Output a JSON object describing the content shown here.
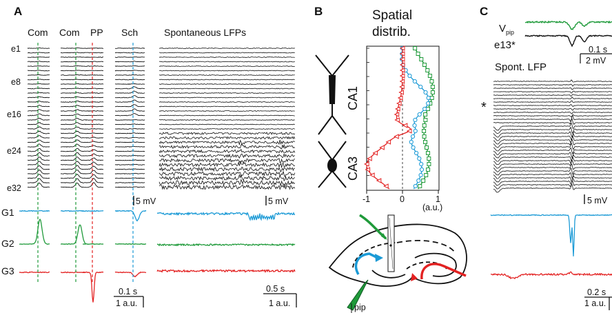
{
  "panels": {
    "a": {
      "label": "A",
      "col_headers": [
        "Com",
        "Com",
        "PP",
        "Sch"
      ],
      "spont_header": "Spontaneous LFPs",
      "electrodes": [
        "e1",
        "e8",
        "e16",
        "e24",
        "e32"
      ],
      "components": [
        "G1",
        "G2",
        "G3"
      ],
      "scale_mv_left": "5 mV",
      "scale_mv_right": "5 mV",
      "scale_time_left": "0.1 s",
      "scale_au_left": "1 a.u.",
      "scale_time_right": "0.5 s",
      "scale_au_right": "1 a.u."
    },
    "b": {
      "label": "B",
      "title_line1": "Spatial",
      "title_line2": "distrib.",
      "region_ca1": "CA1",
      "region_ca3": "CA3",
      "x_ticks": [
        "-1",
        "0",
        "1"
      ],
      "x_unit": "(a.u.)",
      "pip_label": "pip"
    },
    "c": {
      "label": "C",
      "vpip_main": "V",
      "vpip_sub": "pip",
      "electrode_label": "e13*",
      "scale_time_top": "0.1 s",
      "scale_mv_top": "2 mV",
      "spont_label": "Spont. LFP",
      "asterisk": "*",
      "scale_mv_mid": "5 mV",
      "scale_time_bottom": "0.2 s",
      "scale_au_bottom": "1 a.u."
    }
  },
  "colors": {
    "g1": "#1b9ad6",
    "g2": "#1f9a3a",
    "g3": "#e32222",
    "trace": "#111111"
  }
}
